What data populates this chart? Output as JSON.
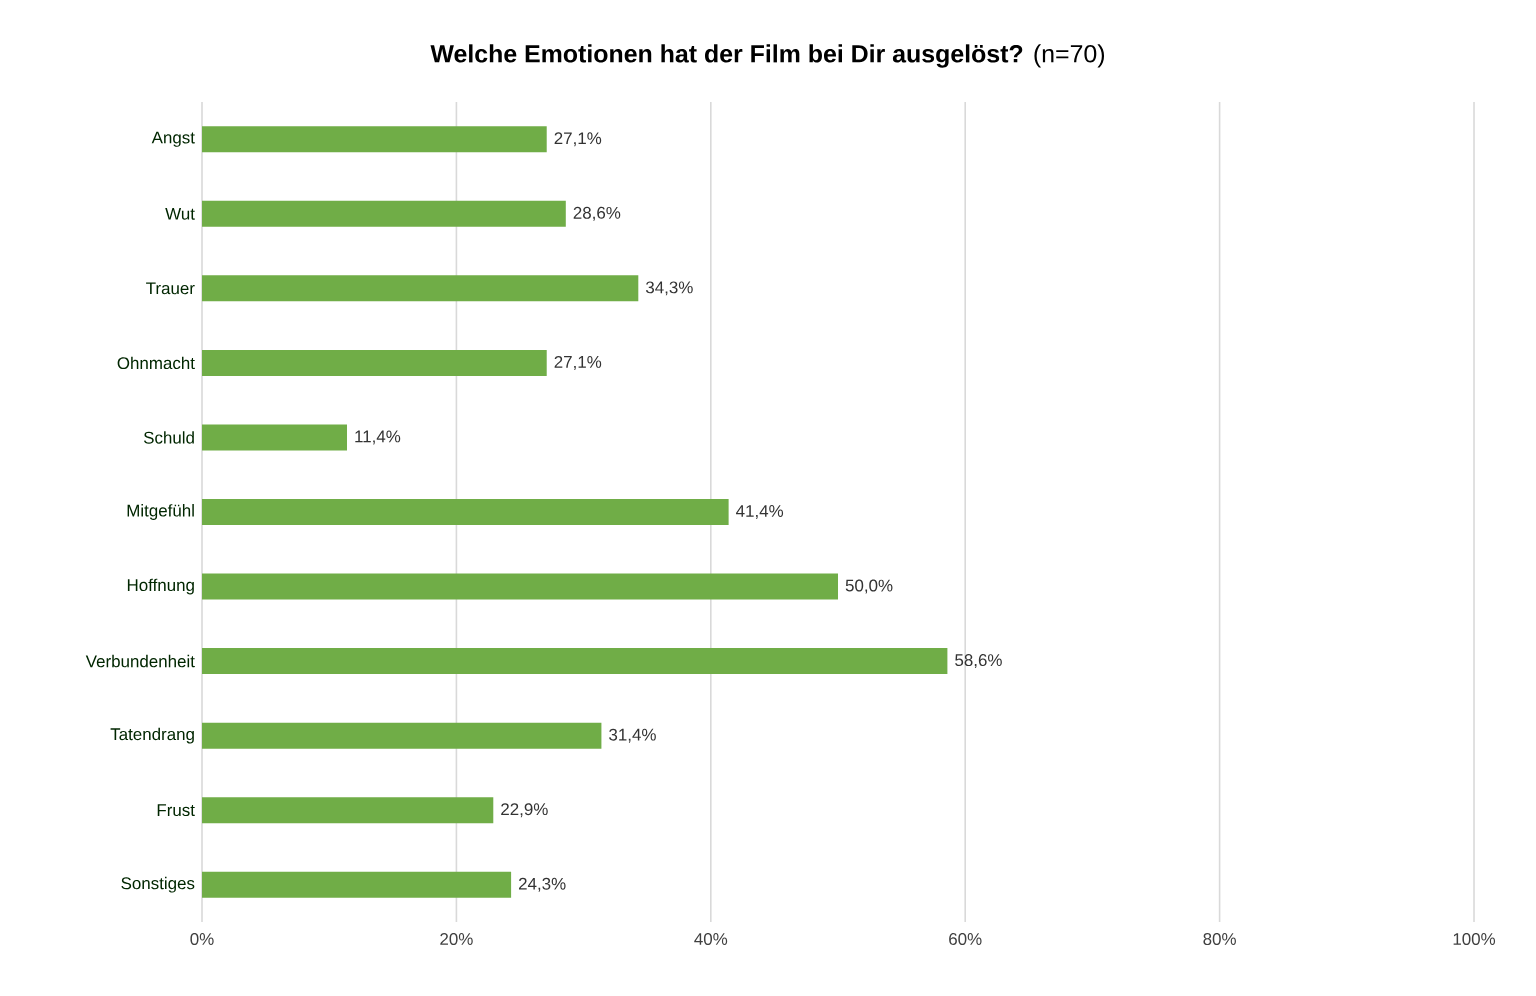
{
  "chart_data": {
    "type": "bar",
    "orientation": "horizontal",
    "title": "**Welche Emotionen hat der Film bei Dir ausgelöst?** (n=70)",
    "categories": [
      "Angst",
      "Wut",
      "Trauer",
      "Ohnmacht",
      "Schuld",
      "Mitgefühl",
      "Hoffnung",
      "Verbundenheit",
      "Tatendrang",
      "Frust",
      "Sonstiges"
    ],
    "values": [
      27.1,
      28.6,
      34.3,
      27.1,
      11.4,
      41.4,
      50.0,
      58.6,
      31.4,
      22.9,
      24.3
    ],
    "value_labels": [
      "27,1%",
      "28,6%",
      "34,3%",
      "27,1%",
      "11,4%",
      "41,4%",
      "50,0%",
      "58,6%",
      "31,4%",
      "22,9%",
      "24,3%"
    ],
    "color": "#70ad47",
    "grid": "x",
    "xlim": [
      0,
      100
    ],
    "xticks": [
      {
        "value": 0,
        "label": "0%"
      },
      {
        "value": 20,
        "label": "20%"
      },
      {
        "value": 40,
        "label": "40%"
      },
      {
        "value": 60,
        "label": "60%"
      },
      {
        "value": 80,
        "label": "80%"
      },
      {
        "value": 100,
        "label": "100%"
      }
    ]
  }
}
